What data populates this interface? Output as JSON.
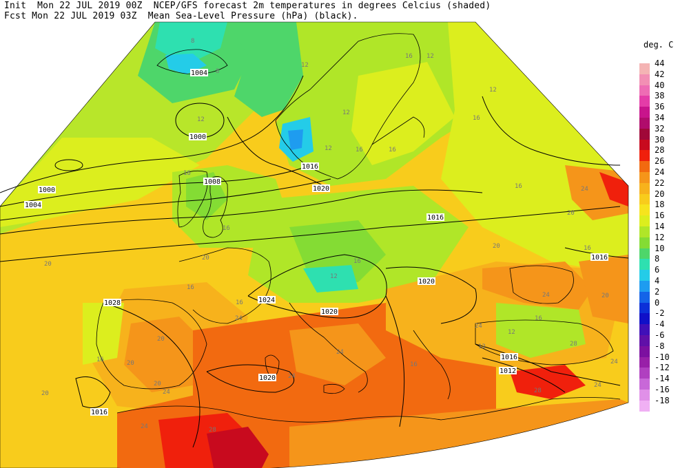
{
  "header": {
    "line1": "Init  Mon 22 JUL 2019 00Z  NCEP/GFS forecast 2m temperatures in degrees Celcius (shaded)",
    "line2": "Fcst Mon 22 JUL 2019 03Z  Mean Sea-Level Pressure (hPa) (black)."
  },
  "legend": {
    "title": "deg. C",
    "entries": [
      {
        "label": "44",
        "color": "#f4b4b4"
      },
      {
        "label": "42",
        "color": "#f28fb4"
      },
      {
        "label": "40",
        "color": "#ee6cb4"
      },
      {
        "label": "38",
        "color": "#e43ca8"
      },
      {
        "label": "36",
        "color": "#c8148c"
      },
      {
        "label": "34",
        "color": "#b00c6c"
      },
      {
        "label": "32",
        "color": "#a00838"
      },
      {
        "label": "30",
        "color": "#c80a1e"
      },
      {
        "label": "28",
        "color": "#f0200c"
      },
      {
        "label": "26",
        "color": "#f26a10"
      },
      {
        "label": "24",
        "color": "#f5951a"
      },
      {
        "label": "22",
        "color": "#f7b21c"
      },
      {
        "label": "20",
        "color": "#f8cc1c"
      },
      {
        "label": "18",
        "color": "#f6e41e"
      },
      {
        "label": "16",
        "color": "#dcee1e"
      },
      {
        "label": "14",
        "color": "#b0e628"
      },
      {
        "label": "12",
        "color": "#84dc34"
      },
      {
        "label": "10",
        "color": "#4ed66a"
      },
      {
        "label": "8",
        "color": "#2ee0b0"
      },
      {
        "label": "6",
        "color": "#24cce8"
      },
      {
        "label": "4",
        "color": "#1e9cf0"
      },
      {
        "label": "2",
        "color": "#1464e8"
      },
      {
        "label": "0",
        "color": "#0c30d8"
      },
      {
        "label": "-2",
        "color": "#1010c8"
      },
      {
        "label": "-4",
        "color": "#4010b8"
      },
      {
        "label": "-6",
        "color": "#6010a8"
      },
      {
        "label": "-8",
        "color": "#7c10a0"
      },
      {
        "label": "-10",
        "color": "#9820a8"
      },
      {
        "label": "-12",
        "color": "#b040c0"
      },
      {
        "label": "-14",
        "color": "#c868d8"
      },
      {
        "label": "-16",
        "color": "#e090e8"
      },
      {
        "label": "-18",
        "color": "#f0b0f4"
      }
    ]
  },
  "isobar_labels": [
    "1004",
    "1000",
    "1000",
    "1004",
    "1008",
    "1016",
    "1020",
    "1016",
    "1016",
    "1020",
    "1024",
    "1020",
    "1028",
    "1020",
    "1016",
    "1016",
    "1012"
  ],
  "temperature_labels": [
    "8",
    "8",
    "12",
    "12",
    "12",
    "12",
    "16",
    "16",
    "16",
    "12",
    "12",
    "16",
    "16",
    "16",
    "16",
    "20",
    "20",
    "16",
    "20",
    "16",
    "12",
    "16",
    "20",
    "24",
    "24",
    "20",
    "20",
    "24",
    "16",
    "20",
    "16",
    "12",
    "24",
    "16",
    "24",
    "28",
    "24",
    "20",
    "20",
    "24",
    "24",
    "28",
    "24",
    "28",
    "24",
    "12",
    "16"
  ]
}
